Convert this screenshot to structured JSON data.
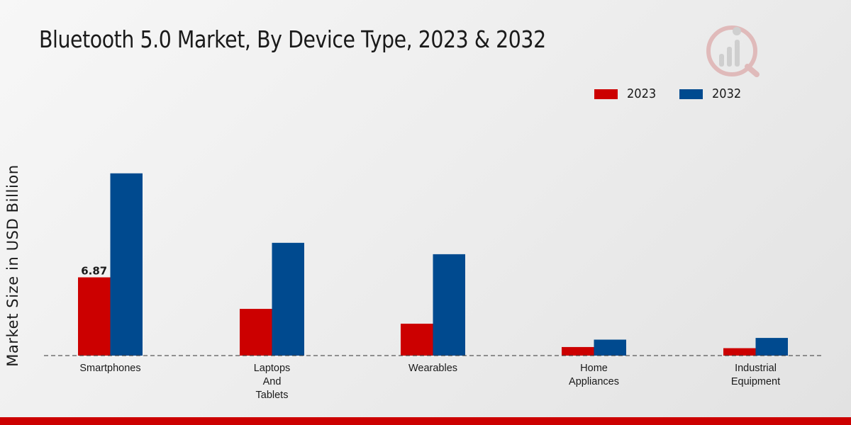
{
  "title": "Bluetooth 5.0 Market, By Device Type, 2023 & 2032",
  "colors": {
    "2023": "#cc0000",
    "2032": "#004a8f",
    "footer": "#cc0000",
    "logo": "#c44040"
  },
  "chart_data": {
    "type": "bar",
    "title": "Bluetooth 5.0 Market, By Device Type, 2023 & 2032",
    "xlabel": "",
    "ylabel": "Market Size in USD Billion",
    "categories": [
      [
        "Smartphones"
      ],
      [
        "Laptops",
        "And",
        "Tablets"
      ],
      [
        "Wearables"
      ],
      [
        "Home",
        "Appliances"
      ],
      [
        "Industrial",
        "Equipment"
      ]
    ],
    "series": [
      {
        "name": "2023",
        "values": [
          6.87,
          4.1,
          2.8,
          0.75,
          0.65
        ]
      },
      {
        "name": "2032",
        "values": [
          16.0,
          9.9,
          8.9,
          1.4,
          1.55
        ]
      }
    ],
    "data_labels": [
      {
        "series": "2023",
        "index": 0,
        "text": "6.87"
      }
    ],
    "ylim": [
      0,
      25
    ],
    "grid": false,
    "legend": "top-right"
  }
}
